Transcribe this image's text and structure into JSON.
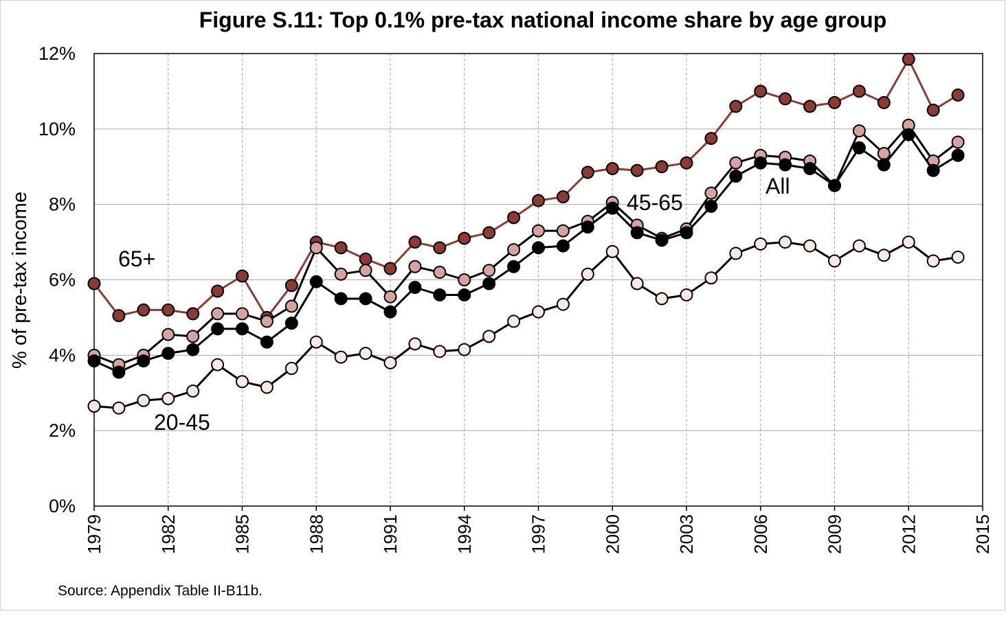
{
  "chart_data": {
    "type": "line",
    "title": "Figure S.11: Top 0.1% pre-tax national income share by age group",
    "ylabel": "% of pre-tax income",
    "xlabel": "",
    "source": "Source: Appendix Table II-B11b.",
    "ylim": [
      0,
      12
    ],
    "xlim": [
      1979,
      2015
    ],
    "y_ticks": [
      "0%",
      "2%",
      "4%",
      "6%",
      "8%",
      "10%",
      "12%"
    ],
    "x_ticks": [
      "1979",
      "1982",
      "1985",
      "1988",
      "1991",
      "1994",
      "1997",
      "2000",
      "2003",
      "2006",
      "2009",
      "2012",
      "2015"
    ],
    "grid": "on",
    "x": [
      1979,
      1980,
      1981,
      1982,
      1983,
      1984,
      1985,
      1986,
      1987,
      1988,
      1989,
      1990,
      1991,
      1992,
      1993,
      1994,
      1995,
      1996,
      1997,
      1998,
      1999,
      2000,
      2001,
      2002,
      2003,
      2004,
      2005,
      2006,
      2007,
      2008,
      2009,
      2010,
      2011,
      2012,
      2013,
      2014
    ],
    "series": [
      {
        "name": "65+",
        "color": "#8b3a34",
        "marker_fill": "#8b3a34",
        "values": [
          5.9,
          5.05,
          5.2,
          5.2,
          5.1,
          5.7,
          6.1,
          5.0,
          5.85,
          7.0,
          6.85,
          6.55,
          6.3,
          7.0,
          6.85,
          7.1,
          7.25,
          7.65,
          8.1,
          8.2,
          8.85,
          8.95,
          8.9,
          9.0,
          9.1,
          9.75,
          10.6,
          11.0,
          10.8,
          10.6,
          10.7,
          11.0,
          10.7,
          11.85,
          10.5,
          10.9
        ]
      },
      {
        "name": "45-65",
        "color": "#000000",
        "marker_fill": "#d6a39e",
        "values": [
          4.0,
          3.75,
          4.0,
          4.55,
          4.5,
          5.1,
          5.1,
          4.9,
          5.3,
          6.85,
          6.15,
          6.25,
          5.55,
          6.35,
          6.2,
          6.0,
          6.25,
          6.8,
          7.3,
          7.3,
          7.55,
          8.05,
          7.45,
          7.1,
          7.35,
          8.3,
          9.1,
          9.3,
          9.25,
          9.15,
          8.5,
          9.95,
          9.35,
          10.1,
          9.15,
          9.65
        ]
      },
      {
        "name": "All",
        "color": "#000000",
        "marker_fill": "#000000",
        "values": [
          3.85,
          3.55,
          3.85,
          4.05,
          4.15,
          4.7,
          4.7,
          4.35,
          4.85,
          5.95,
          5.5,
          5.5,
          5.15,
          5.8,
          5.6,
          5.6,
          5.9,
          6.35,
          6.85,
          6.9,
          7.4,
          7.9,
          7.25,
          7.05,
          7.25,
          7.95,
          8.75,
          9.1,
          9.05,
          8.95,
          8.5,
          9.5,
          9.05,
          9.85,
          8.9,
          9.3
        ]
      },
      {
        "name": "20-45",
        "color": "#000000",
        "marker_fill": "#fbe9e4",
        "values": [
          2.65,
          2.6,
          2.8,
          2.85,
          3.05,
          3.75,
          3.3,
          3.15,
          3.65,
          4.35,
          3.95,
          4.05,
          3.8,
          4.3,
          4.1,
          4.15,
          4.5,
          4.9,
          5.15,
          5.35,
          6.15,
          6.75,
          5.9,
          5.5,
          5.6,
          6.05,
          6.7,
          6.95,
          7.0,
          6.9,
          6.5,
          6.9,
          6.65,
          7.0,
          6.5,
          6.6
        ]
      }
    ],
    "annotations": [
      {
        "text": "65+"
      },
      {
        "text": "45-65"
      },
      {
        "text": "All"
      },
      {
        "text": "20-45"
      }
    ]
  }
}
